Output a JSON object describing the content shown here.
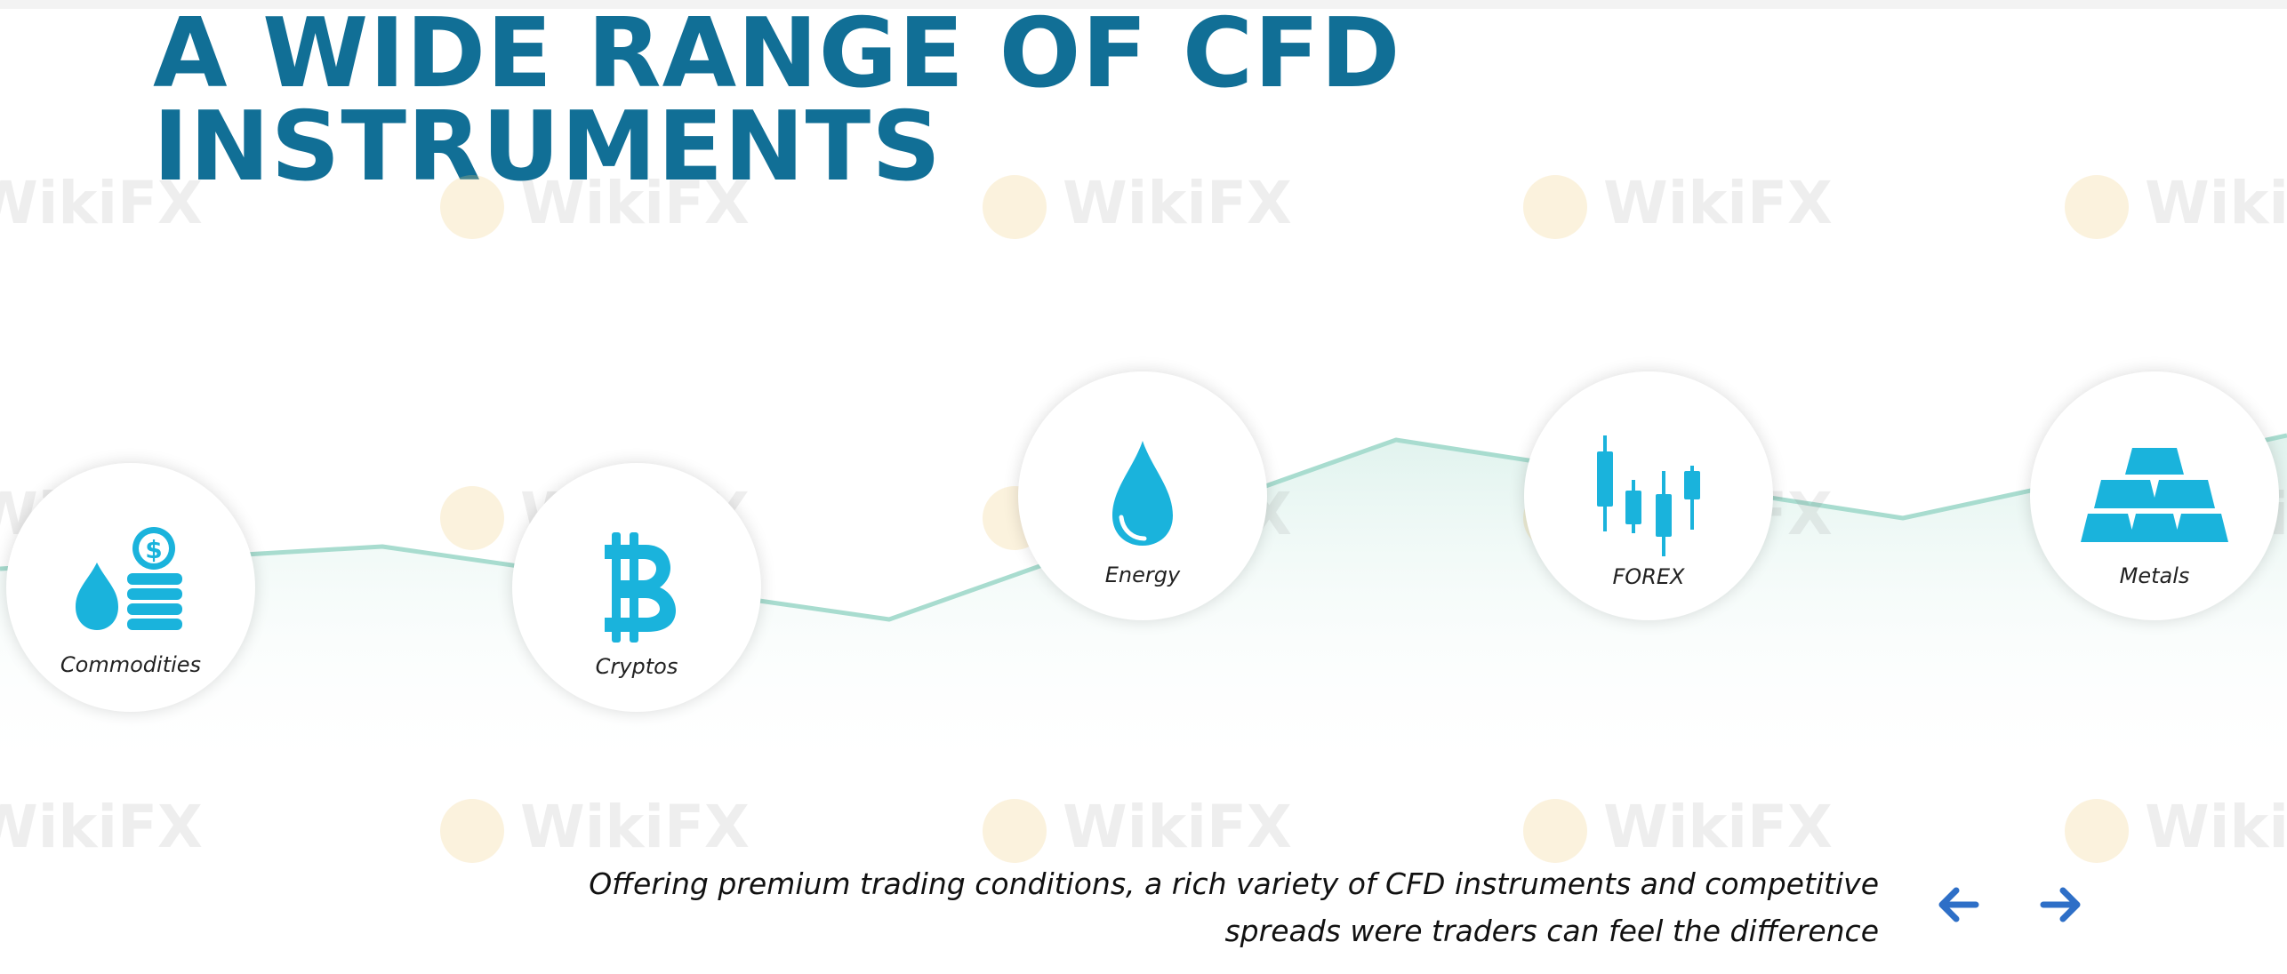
{
  "heading": {
    "line1": "A WIDE RANGE OF CFD",
    "line2": "INSTRUMENTS"
  },
  "watermark_text": "WikiFX",
  "categories": [
    {
      "label": "Commodities",
      "icon": "oil-drop-coins-icon"
    },
    {
      "label": "Cryptos",
      "icon": "bitcoin-icon"
    },
    {
      "label": "Energy",
      "icon": "water-drop-icon"
    },
    {
      "label": "FOREX",
      "icon": "candlestick-chart-icon"
    },
    {
      "label": "Metals",
      "icon": "gold-bars-icon"
    }
  ],
  "tagline": {
    "line1": "Offering premium trading conditions, a rich variety of CFD instruments and competitive",
    "line2": "spreads were traders can feel the difference"
  },
  "nav": {
    "prev_icon": "arrow-left-icon",
    "next_icon": "arrow-right-icon"
  },
  "colors": {
    "heading": "#116f96",
    "icon": "#1ab3dc",
    "arrow": "#2e6fc7",
    "line": "#a8dccf"
  }
}
